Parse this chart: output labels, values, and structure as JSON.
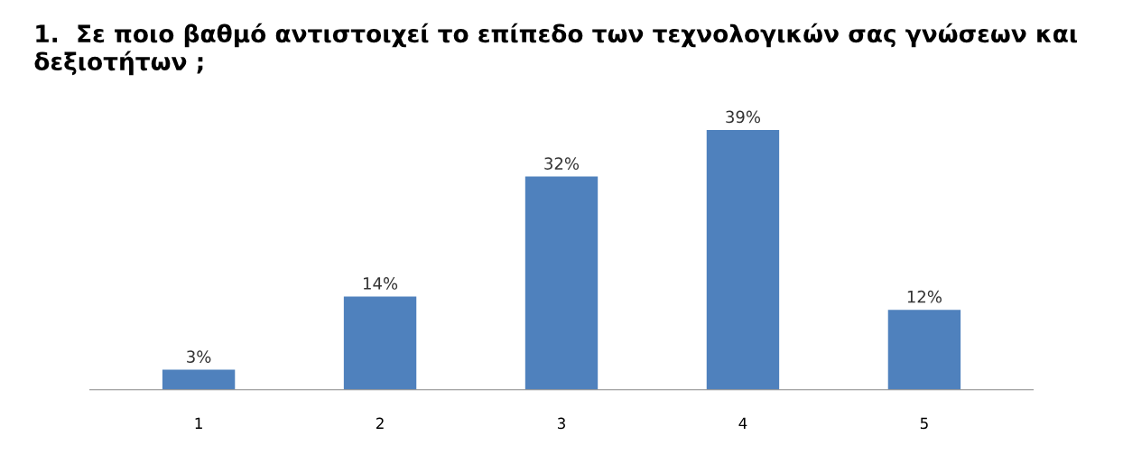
{
  "chart_data": {
    "type": "bar",
    "title": "1.  Σε ποιο βαθμό αντιστοιχεί το επίπεδο των τεχνολογικών σας γνώσεων και δεξιοτήτων ;",
    "categories": [
      "1",
      "2",
      "3",
      "4",
      "5"
    ],
    "values": [
      3,
      14,
      32,
      39,
      12
    ],
    "value_labels": [
      "3%",
      "14%",
      "32%",
      "39%",
      "12%"
    ],
    "color": "#4f81bd",
    "grid": false,
    "legend": false
  }
}
